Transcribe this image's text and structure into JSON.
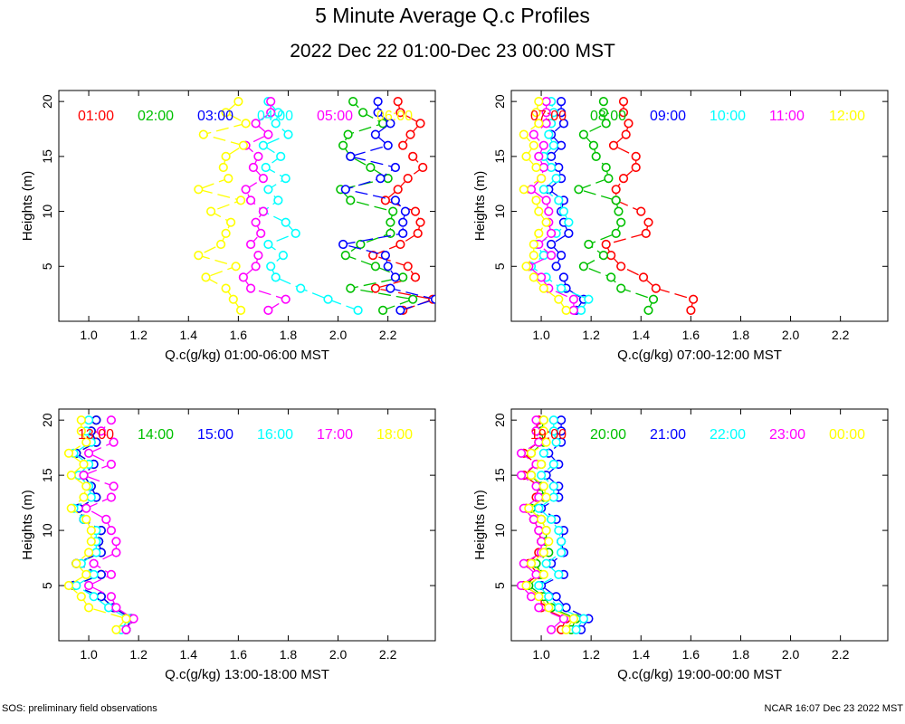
{
  "title": "5 Minute Average Q.c Profiles",
  "subtitle": "2022 Dec 22 01:00-Dec 23 00:00 MST",
  "footer": {
    "left": "SOS: preliminary field observations",
    "right": "NCAR 16:07 Dec 23 2022 MST"
  },
  "colors": {
    "red": "#ff0000",
    "green": "#00c000",
    "blue": "#0000ff",
    "cyan": "#00ffff",
    "magenta": "#ff00ff",
    "yellow": "#ffff00"
  },
  "chart_data": [
    {
      "type": "line",
      "xlabel": "Q.c(g/kg) 01:00-06:00 MST",
      "ylabel": "Heights (m)",
      "xlim": [
        0.88,
        2.39
      ],
      "ylim": [
        0,
        21
      ],
      "xticks": [
        "1.0",
        "1.2",
        "1.4",
        "1.6",
        "1.8",
        "2.0",
        "2.2"
      ],
      "yticks": [
        "5",
        "10",
        "15",
        "20"
      ],
      "heights": [
        1,
        2,
        3,
        4,
        5,
        6,
        7,
        8,
        9,
        10,
        11,
        12,
        13,
        14,
        15,
        16,
        17,
        18,
        19,
        20
      ],
      "series": [
        {
          "name": "01:00",
          "color": "#ff0000",
          "values": [
            2.26,
            2.38,
            2.15,
            2.31,
            2.28,
            2.14,
            2.25,
            2.32,
            2.33,
            2.31,
            2.19,
            2.24,
            2.28,
            2.34,
            2.3,
            2.26,
            2.29,
            2.33,
            2.25,
            2.24
          ]
        },
        {
          "name": "02:00",
          "color": "#00c000",
          "values": [
            2.18,
            2.3,
            2.05,
            2.26,
            2.15,
            2.03,
            2.09,
            2.21,
            2.21,
            2.22,
            2.05,
            2.01,
            2.2,
            2.13,
            2.05,
            2.02,
            2.04,
            2.18,
            2.1,
            2.06
          ]
        },
        {
          "name": "03:00",
          "color": "#0000ff",
          "values": [
            2.25,
            2.39,
            2.21,
            2.23,
            2.2,
            2.19,
            2.02,
            2.26,
            2.26,
            2.27,
            2.23,
            2.03,
            2.17,
            2.23,
            2.05,
            2.2,
            2.15,
            2.21,
            2.16,
            2.16
          ]
        },
        {
          "name": "04:00",
          "color": "#00ffff",
          "values": [
            2.08,
            1.96,
            1.85,
            1.75,
            1.73,
            1.78,
            1.72,
            1.83,
            1.79,
            1.7,
            1.76,
            1.72,
            1.79,
            1.71,
            1.77,
            1.7,
            1.8,
            1.75,
            1.76,
            1.72
          ]
        },
        {
          "name": "05:00",
          "color": "#ff00ff",
          "values": [
            1.72,
            1.79,
            1.65,
            1.62,
            1.67,
            1.68,
            1.65,
            1.69,
            1.67,
            1.7,
            1.65,
            1.63,
            1.7,
            1.66,
            1.68,
            1.63,
            1.72,
            1.67,
            1.73,
            1.73
          ]
        },
        {
          "name": "06:00",
          "color": "#ffff00",
          "values": [
            1.61,
            1.58,
            1.55,
            1.47,
            1.59,
            1.44,
            1.53,
            1.55,
            1.57,
            1.49,
            1.61,
            1.44,
            1.56,
            1.54,
            1.55,
            1.62,
            1.46,
            1.63,
            1.55,
            1.6
          ]
        }
      ]
    },
    {
      "type": "line",
      "xlabel": "Q.c(g/kg) 07:00-12:00 MST",
      "ylabel": "Heights (m)",
      "xlim": [
        0.88,
        2.39
      ],
      "ylim": [
        0,
        21
      ],
      "xticks": [
        "1.0",
        "1.2",
        "1.4",
        "1.6",
        "1.8",
        "2.0",
        "2.2"
      ],
      "yticks": [
        "5",
        "10",
        "15",
        "20"
      ],
      "heights": [
        1,
        2,
        3,
        4,
        5,
        6,
        7,
        8,
        9,
        10,
        11,
        12,
        13,
        14,
        15,
        16,
        17,
        18,
        19,
        20
      ],
      "series": [
        {
          "name": "07:00",
          "color": "#ff0000",
          "values": [
            1.6,
            1.61,
            1.46,
            1.41,
            1.32,
            1.28,
            1.26,
            1.42,
            1.43,
            1.4,
            1.3,
            1.3,
            1.33,
            1.38,
            1.38,
            1.29,
            1.34,
            1.35,
            1.33,
            1.33
          ]
        },
        {
          "name": "08:00",
          "color": "#00c000",
          "values": [
            1.43,
            1.45,
            1.32,
            1.28,
            1.17,
            1.25,
            1.19,
            1.3,
            1.32,
            1.31,
            1.3,
            1.15,
            1.27,
            1.26,
            1.22,
            1.21,
            1.17,
            1.26,
            1.25,
            1.25
          ]
        },
        {
          "name": "09:00",
          "color": "#0000ff",
          "values": [
            1.14,
            1.17,
            1.1,
            1.09,
            1.06,
            1.08,
            1.04,
            1.11,
            1.09,
            1.08,
            1.09,
            1.03,
            1.08,
            1.07,
            1.04,
            1.08,
            1.04,
            1.09,
            1.08,
            1.08
          ]
        },
        {
          "name": "10:00",
          "color": "#00ffff",
          "values": [
            1.16,
            1.19,
            1.08,
            1.02,
            0.96,
            1.01,
            0.98,
            1.06,
            1.11,
            1.09,
            1.07,
            1.01,
            1.06,
            1.04,
            1.01,
            1.05,
            1.03,
            1.04,
            1.05,
            1.04
          ]
        },
        {
          "name": "11:00",
          "color": "#ff00ff",
          "values": [
            1.13,
            1.13,
            1.03,
            1.0,
            0.95,
            1.04,
            0.99,
            1.04,
            1.03,
            1.03,
            1.02,
            0.96,
            1.0,
            1.01,
            0.99,
            1.01,
            0.97,
            1.02,
            1.02,
            1.02
          ]
        },
        {
          "name": "12:00",
          "color": "#ffff00",
          "values": [
            1.1,
            1.07,
            1.01,
            0.97,
            0.94,
            0.97,
            0.97,
            0.99,
            1.02,
            0.99,
            0.98,
            0.93,
            1.0,
            0.98,
            0.94,
            0.97,
            0.93,
            0.99,
            0.98,
            0.99
          ]
        }
      ]
    },
    {
      "type": "line",
      "xlabel": "Q.c(g/kg) 13:00-18:00 MST",
      "ylabel": "Heights (m)",
      "xlim": [
        0.88,
        2.39
      ],
      "ylim": [
        0,
        21
      ],
      "xticks": [
        "1.0",
        "1.2",
        "1.4",
        "1.6",
        "1.8",
        "2.0",
        "2.2"
      ],
      "yticks": [
        "5",
        "10",
        "15",
        "20"
      ],
      "heights": [
        1,
        2,
        3,
        4,
        5,
        6,
        7,
        8,
        9,
        10,
        11,
        12,
        13,
        14,
        15,
        16,
        17,
        18,
        19,
        20
      ],
      "series": [
        {
          "name": "13:00",
          "color": "#ff0000",
          "values": [
            1.15,
            1.17,
            1.1,
            1.05,
            0.94,
            1.05,
            0.95,
            1.05,
            1.04,
            1.05,
            0.98,
            0.96,
            1.03,
            1.01,
            0.98,
            1.02,
            0.95,
            1.03,
            1.01,
            1.03
          ]
        },
        {
          "name": "14:00",
          "color": "#00c000",
          "values": [
            1.15,
            1.17,
            1.1,
            1.05,
            0.94,
            1.05,
            0.95,
            1.05,
            1.04,
            1.05,
            0.98,
            0.96,
            1.03,
            1.01,
            0.98,
            1.02,
            0.95,
            1.03,
            1.01,
            1.03
          ]
        },
        {
          "name": "15:00",
          "color": "#0000ff",
          "values": [
            1.15,
            1.17,
            1.1,
            1.05,
            0.94,
            1.05,
            0.95,
            1.05,
            1.04,
            1.05,
            0.98,
            0.96,
            1.03,
            1.01,
            0.98,
            1.02,
            0.95,
            1.03,
            1.01,
            1.03
          ]
        },
        {
          "name": "16:00",
          "color": "#00ffff",
          "values": [
            1.13,
            1.16,
            1.08,
            1.02,
            0.95,
            1.02,
            0.97,
            1.03,
            1.03,
            1.03,
            0.98,
            0.94,
            1.01,
            1.0,
            0.96,
            1.0,
            0.94,
            1.01,
            0.99,
            1.0
          ]
        },
        {
          "name": "17:00",
          "color": "#ff00ff",
          "values": [
            1.15,
            1.18,
            1.11,
            1.09,
            1.0,
            1.09,
            1.02,
            1.11,
            1.11,
            1.09,
            1.07,
            0.99,
            1.09,
            1.1,
            0.98,
            1.09,
            1.0,
            1.1,
            1.05,
            1.09
          ]
        },
        {
          "name": "18:00",
          "color": "#ffff00",
          "values": [
            1.11,
            1.15,
            1.0,
            0.97,
            0.92,
            0.99,
            0.95,
            1.0,
            1.01,
            1.01,
            0.99,
            0.93,
            0.98,
            0.99,
            0.93,
            0.98,
            0.92,
            0.99,
            0.97,
            0.97
          ]
        }
      ]
    },
    {
      "type": "line",
      "xlabel": "Q.c(g/kg) 19:00-00:00 MST",
      "ylabel": "Heights (m)",
      "xlim": [
        0.88,
        2.39
      ],
      "ylim": [
        0,
        21
      ],
      "xticks": [
        "1.0",
        "1.2",
        "1.4",
        "1.6",
        "1.8",
        "2.0",
        "2.2"
      ],
      "yticks": [
        "5",
        "10",
        "15",
        "20"
      ],
      "heights": [
        1,
        2,
        3,
        4,
        5,
        6,
        7,
        8,
        9,
        10,
        11,
        12,
        13,
        14,
        15,
        16,
        17,
        18,
        19,
        20
      ],
      "series": [
        {
          "name": "19:00",
          "color": "#ff0000",
          "values": [
            1.08,
            1.1,
            1.0,
            1.0,
            0.93,
            0.99,
            0.95,
            0.99,
            1.0,
            0.99,
            0.97,
            0.94,
            0.98,
            0.99,
            0.93,
            0.98,
            0.93,
            0.99,
            0.98,
            0.99
          ]
        },
        {
          "name": "20:00",
          "color": "#00c000",
          "values": [
            1.12,
            1.14,
            1.04,
            1.01,
            0.95,
            1.0,
            0.98,
            1.03,
            1.02,
            1.02,
            1.0,
            0.96,
            1.01,
            1.0,
            0.96,
            1.0,
            0.96,
            1.01,
            1.0,
            1.01
          ]
        },
        {
          "name": "21:00",
          "color": "#0000ff",
          "values": [
            1.16,
            1.19,
            1.1,
            1.06,
            1.0,
            1.09,
            1.04,
            1.09,
            1.08,
            1.09,
            1.06,
            1.0,
            1.07,
            1.07,
            1.02,
            1.07,
            1.03,
            1.08,
            1.08,
            1.08
          ]
        },
        {
          "name": "22:00",
          "color": "#00ffff",
          "values": [
            1.14,
            1.17,
            1.07,
            1.03,
            0.99,
            1.07,
            1.02,
            1.08,
            1.08,
            1.07,
            1.04,
            0.99,
            1.05,
            1.05,
            1.0,
            1.05,
            1.01,
            1.06,
            1.05,
            1.05
          ]
        },
        {
          "name": "23:00",
          "color": "#ff00ff",
          "values": [
            1.04,
            1.09,
            0.99,
            0.96,
            0.92,
            0.98,
            0.93,
            1.0,
            1.0,
            0.99,
            0.97,
            0.93,
            0.99,
            0.98,
            0.92,
            0.98,
            0.92,
            0.99,
            0.98,
            0.98
          ]
        },
        {
          "name": "00:00",
          "color": "#ffff00",
          "values": [
            1.1,
            1.13,
            1.03,
            0.99,
            0.94,
            1.01,
            0.96,
            1.01,
            1.03,
            1.02,
            1.0,
            0.95,
            1.02,
            1.01,
            0.96,
            1.0,
            0.96,
            1.02,
            1.01,
            1.01
          ]
        }
      ]
    }
  ]
}
